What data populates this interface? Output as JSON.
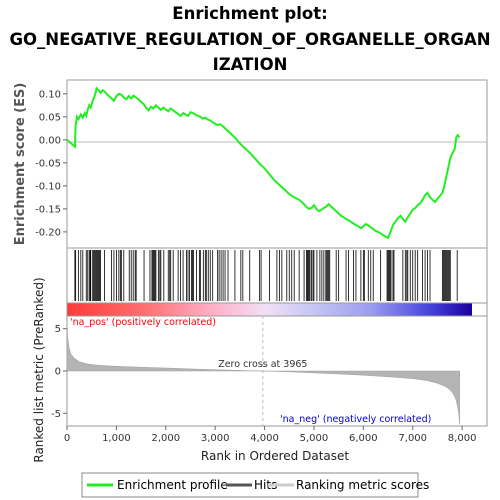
{
  "title_lines": [
    "Enrichment plot:",
    "GO_NEGATIVE_REGULATION_OF_ORGANELLE_ORGAN",
    "IZATION"
  ],
  "colors": {
    "es_line": "#22ee22",
    "hits": "#000000",
    "metric_fill": "#b4b4b4",
    "pos_label": "#ff0000",
    "neg_label": "#0000cc",
    "zero_cross_line": "#bbbbbb"
  },
  "chart_data": [
    {
      "type": "line",
      "name": "enrichment-profile",
      "ylabel": "Enrichment score (ES)",
      "ylim": [
        -0.235,
        0.13
      ],
      "xlim": [
        0,
        8200
      ],
      "yticks": [
        0.1,
        0.05,
        0.0,
        -0.05,
        -0.1,
        -0.15,
        -0.2
      ],
      "ytick_labels": [
        "0.10",
        "0.05",
        "0.00",
        "-0.05",
        "-0.10",
        "-0.15",
        "-0.20"
      ],
      "series": [
        {
          "name": "Enrichment profile",
          "x": [
            0,
            160,
            175,
            200,
            230,
            280,
            320,
            360,
            390,
            420,
            450,
            480,
            520,
            560,
            600,
            640,
            680,
            720,
            760,
            800,
            850,
            900,
            950,
            1000,
            1050,
            1100,
            1150,
            1200,
            1250,
            1300,
            1350,
            1400,
            1450,
            1500,
            1550,
            1600,
            1650,
            1700,
            1750,
            1800,
            1850,
            1900,
            1950,
            2000,
            2050,
            2100,
            2150,
            2200,
            2250,
            2300,
            2350,
            2400,
            2450,
            2500,
            2550,
            2600,
            2650,
            2700,
            2750,
            2800,
            2850,
            2900,
            2950,
            3000,
            3050,
            3100,
            3150,
            3200,
            3300,
            3400,
            3500,
            3600,
            3700,
            3800,
            3900,
            4000,
            4100,
            4200,
            4300,
            4400,
            4500,
            4600,
            4700,
            4800,
            4850,
            4900,
            4950,
            5000,
            5050,
            5100,
            5150,
            5200,
            5250,
            5300,
            5350,
            5400,
            5450,
            5500,
            5550,
            5600,
            5650,
            5700,
            5750,
            5800,
            5850,
            5900,
            5950,
            6000,
            6050,
            6100,
            6150,
            6200,
            6250,
            6300,
            6350,
            6400,
            6450,
            6500,
            6550,
            6600,
            6650,
            6700,
            6750,
            6800,
            6850,
            6900,
            6950,
            7000,
            7050,
            7100,
            7150,
            7200,
            7250,
            7300,
            7350,
            7400,
            7450,
            7500,
            7550,
            7600,
            7640,
            7680,
            7720,
            7760,
            7800,
            7850,
            7880,
            7910,
            7950
          ],
          "y": [
            0.0,
            -0.015,
            0.03,
            0.05,
            0.045,
            0.055,
            0.048,
            0.058,
            0.052,
            0.065,
            0.075,
            0.07,
            0.085,
            0.095,
            0.112,
            0.108,
            0.102,
            0.108,
            0.105,
            0.1,
            0.095,
            0.09,
            0.085,
            0.095,
            0.1,
            0.098,
            0.092,
            0.088,
            0.095,
            0.09,
            0.096,
            0.092,
            0.088,
            0.082,
            0.078,
            0.07,
            0.064,
            0.072,
            0.068,
            0.075,
            0.07,
            0.065,
            0.07,
            0.066,
            0.062,
            0.068,
            0.064,
            0.06,
            0.056,
            0.052,
            0.058,
            0.055,
            0.052,
            0.06,
            0.058,
            0.055,
            0.052,
            0.05,
            0.046,
            0.048,
            0.044,
            0.042,
            0.038,
            0.035,
            0.032,
            0.034,
            0.03,
            0.025,
            0.015,
            0.005,
            -0.008,
            -0.018,
            -0.028,
            -0.04,
            -0.052,
            -0.062,
            -0.075,
            -0.088,
            -0.098,
            -0.108,
            -0.118,
            -0.125,
            -0.13,
            -0.14,
            -0.146,
            -0.15,
            -0.148,
            -0.142,
            -0.15,
            -0.155,
            -0.152,
            -0.148,
            -0.145,
            -0.14,
            -0.145,
            -0.15,
            -0.155,
            -0.16,
            -0.165,
            -0.168,
            -0.172,
            -0.175,
            -0.178,
            -0.182,
            -0.185,
            -0.188,
            -0.192,
            -0.188,
            -0.183,
            -0.186,
            -0.19,
            -0.194,
            -0.198,
            -0.2,
            -0.203,
            -0.207,
            -0.21,
            -0.213,
            -0.2,
            -0.185,
            -0.178,
            -0.17,
            -0.165,
            -0.172,
            -0.178,
            -0.168,
            -0.16,
            -0.152,
            -0.148,
            -0.142,
            -0.138,
            -0.13,
            -0.12,
            -0.115,
            -0.125,
            -0.13,
            -0.135,
            -0.128,
            -0.122,
            -0.115,
            -0.1,
            -0.08,
            -0.06,
            -0.04,
            -0.03,
            -0.02,
            0.005,
            0.01,
            0.005
          ]
        }
      ]
    },
    {
      "type": "bar",
      "name": "hits",
      "series": [
        {
          "name": "Hits",
          "x": [
            160,
            175,
            230,
            280,
            320,
            390,
            420,
            450,
            470,
            480,
            520,
            540,
            560,
            580,
            600,
            620,
            640,
            660,
            680,
            760,
            900,
            950,
            1000,
            1050,
            1080,
            1100,
            1150,
            1260,
            1300,
            1340,
            1380,
            1400,
            1560,
            1680,
            1720,
            1740,
            1760,
            1780,
            1800,
            1850,
            1880,
            1900,
            1960,
            2050,
            2080,
            2100,
            2150,
            2250,
            2300,
            2350,
            2420,
            2450,
            2480,
            2520,
            2540,
            2560,
            2620,
            2680,
            2700,
            2760,
            2800,
            2820,
            2860,
            2900,
            2950,
            3050,
            3080,
            3120,
            3160,
            3200,
            3260,
            3400,
            3520,
            3560,
            3700,
            3900,
            3930,
            4100,
            4250,
            4300,
            4350,
            4450,
            4500,
            4550,
            4600,
            4700,
            4800,
            4850,
            4870,
            4880,
            4900,
            4920,
            4950,
            4980,
            5000,
            5060,
            5120,
            5160,
            5200,
            5240,
            5260,
            5280,
            5300,
            5320,
            5450,
            5500,
            5650,
            5700,
            5800,
            5850,
            5950,
            6000,
            6020,
            6100,
            6150,
            6200,
            6350,
            6480,
            6500,
            6520,
            6540,
            6560,
            6600,
            6620,
            6800,
            6850,
            6880,
            6900,
            6950,
            7000,
            7050,
            7100,
            7200,
            7250,
            7300,
            7350,
            7600,
            7620,
            7640,
            7660,
            7680,
            7700,
            7720,
            7740,
            7760,
            7900
          ]
        }
      ]
    },
    {
      "type": "area",
      "name": "ranked-list-metric",
      "ylabel": "Ranked list metric (PreRanked)",
      "xlabel": "Rank in Ordered Dataset",
      "ylim": [
        -6.5,
        6.5
      ],
      "yticks": [
        5,
        0,
        -5
      ],
      "ytick_labels": [
        "5",
        "0",
        "-5"
      ],
      "xlim": [
        0,
        8200
      ],
      "xticks": [
        0,
        1000,
        2000,
        3000,
        4000,
        5000,
        6000,
        7000,
        8000
      ],
      "xtick_labels": [
        "0",
        "1,000",
        "2,000",
        "3,000",
        "4,000",
        "5,000",
        "6,000",
        "7,000",
        "8,000"
      ],
      "series": [
        {
          "name": "Ranking metric scores",
          "x": [
            0,
            15,
            40,
            80,
            150,
            250,
            400,
            600,
            1000,
            1500,
            2000,
            2500,
            3000,
            3500,
            3965,
            4500,
            5000,
            5500,
            6000,
            6500,
            7000,
            7300,
            7500,
            7650,
            7750,
            7820,
            7870,
            7900,
            7930,
            7950
          ],
          "y": [
            5.8,
            4.0,
            2.8,
            2.0,
            1.5,
            1.1,
            0.85,
            0.7,
            0.55,
            0.45,
            0.35,
            0.25,
            0.15,
            0.07,
            0.0,
            -0.1,
            -0.22,
            -0.35,
            -0.5,
            -0.68,
            -0.9,
            -1.15,
            -1.45,
            -1.8,
            -2.2,
            -2.7,
            -3.3,
            -4.0,
            -5.0,
            -6.3
          ]
        }
      ],
      "annotations": {
        "zero_cross": "Zero cross at 3965",
        "zero_cross_x": 3965,
        "pos_label": "'na_pos' (positively correlated)",
        "neg_label": "'na_neg' (negatively correlated)"
      }
    }
  ],
  "legend": {
    "items": [
      {
        "label": "Enrichment profile",
        "color": "#22ee22"
      },
      {
        "label": "Hits",
        "color": "#555555"
      },
      {
        "label": "Ranking metric scores",
        "color": "#cccccc"
      }
    ]
  }
}
